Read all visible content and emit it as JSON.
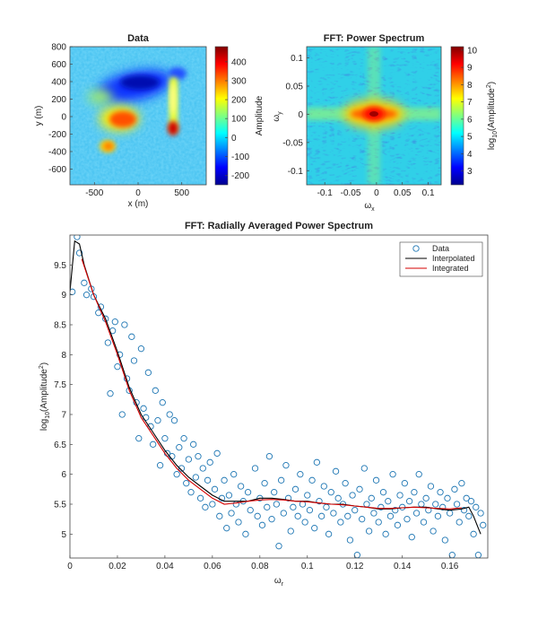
{
  "chart_data": [
    {
      "type": "heatmap",
      "title": "Data",
      "xlabel": "x (m)",
      "ylabel": "y (m)",
      "xlim": [
        -780,
        780
      ],
      "ylim": [
        -780,
        800
      ],
      "xticks": [
        -500,
        0,
        500
      ],
      "yticks": [
        -600,
        -400,
        -200,
        0,
        200,
        400,
        600,
        800
      ],
      "colorbar": {
        "label": "Amplitude",
        "range": [
          -250,
          480
        ],
        "ticks": [
          -200,
          -100,
          0,
          100,
          200,
          300,
          400
        ]
      },
      "features": [
        {
          "x": 0,
          "y": -80,
          "amplitude": 300
        },
        {
          "x": -300,
          "y": -380,
          "amplitude": 220
        },
        {
          "x": 430,
          "y": -180,
          "amplitude": 450
        },
        {
          "x": 0,
          "y": 300,
          "amplitude": -180
        },
        {
          "x": 440,
          "y": 480,
          "amplitude": -120
        }
      ]
    },
    {
      "type": "heatmap",
      "title": "FFT: Power Spectrum",
      "xlabel": "ω",
      "xlabel_sub": "x",
      "ylabel": "ω",
      "ylabel_sub": "y",
      "xlim": [
        -0.135,
        0.125
      ],
      "ylim": [
        -0.125,
        0.12
      ],
      "xticks": [
        -0.1,
        -0.05,
        0,
        0.05,
        0.1
      ],
      "yticks": [
        -0.1,
        -0.05,
        0,
        0.05,
        0.1
      ],
      "colorbar": {
        "label": "log10(Amplitude²)",
        "range": [
          2.2,
          10.2
        ],
        "ticks": [
          3,
          4,
          5,
          6,
          7,
          8,
          9,
          10
        ]
      }
    },
    {
      "type": "scatter",
      "title": "FFT: Radially Averaged Power Spectrum",
      "xlabel": "ω",
      "xlabel_sub": "r",
      "ylabel": "log10(Amplitude²)",
      "xlim": [
        0,
        0.176
      ],
      "ylim": [
        4.6,
        10.0
      ],
      "xticks": [
        0,
        0.02,
        0.04,
        0.06,
        0.08,
        0.1,
        0.12,
        0.14,
        0.16
      ],
      "yticks": [
        5,
        5.5,
        6,
        6.5,
        7,
        7.5,
        8,
        8.5,
        9,
        9.5
      ],
      "legend": {
        "position": "top-right",
        "entries": [
          "Data",
          "Interpolated",
          "Integrated"
        ]
      },
      "series": [
        {
          "name": "Data",
          "marker": "circle",
          "color": "#1f77b4",
          "points": [
            [
              0.001,
              9.05
            ],
            [
              0.003,
              9.97
            ],
            [
              0.004,
              9.7
            ],
            [
              0.006,
              9.2
            ],
            [
              0.007,
              9.0
            ],
            [
              0.009,
              9.1
            ],
            [
              0.01,
              8.97
            ],
            [
              0.012,
              8.7
            ],
            [
              0.013,
              8.8
            ],
            [
              0.015,
              8.6
            ],
            [
              0.016,
              8.2
            ],
            [
              0.017,
              7.35
            ],
            [
              0.018,
              8.4
            ],
            [
              0.019,
              8.55
            ],
            [
              0.02,
              7.8
            ],
            [
              0.021,
              8.0
            ],
            [
              0.022,
              7.0
            ],
            [
              0.023,
              8.5
            ],
            [
              0.024,
              7.6
            ],
            [
              0.025,
              7.4
            ],
            [
              0.026,
              8.3
            ],
            [
              0.027,
              7.9
            ],
            [
              0.028,
              7.2
            ],
            [
              0.029,
              6.6
            ],
            [
              0.03,
              8.1
            ],
            [
              0.031,
              7.1
            ],
            [
              0.032,
              6.95
            ],
            [
              0.033,
              7.7
            ],
            [
              0.034,
              6.8
            ],
            [
              0.035,
              6.5
            ],
            [
              0.036,
              7.4
            ],
            [
              0.037,
              6.9
            ],
            [
              0.038,
              6.15
            ],
            [
              0.039,
              7.2
            ],
            [
              0.04,
              6.6
            ],
            [
              0.041,
              6.35
            ],
            [
              0.042,
              7.0
            ],
            [
              0.043,
              6.3
            ],
            [
              0.044,
              6.9
            ],
            [
              0.045,
              6.0
            ],
            [
              0.046,
              6.45
            ],
            [
              0.047,
              6.1
            ],
            [
              0.048,
              6.6
            ],
            [
              0.049,
              5.85
            ],
            [
              0.05,
              6.25
            ],
            [
              0.051,
              5.7
            ],
            [
              0.052,
              6.5
            ],
            [
              0.053,
              5.95
            ],
            [
              0.054,
              6.3
            ],
            [
              0.055,
              5.6
            ],
            [
              0.056,
              6.1
            ],
            [
              0.057,
              5.45
            ],
            [
              0.058,
              5.9
            ],
            [
              0.059,
              6.2
            ],
            [
              0.06,
              5.5
            ],
            [
              0.061,
              5.75
            ],
            [
              0.062,
              6.35
            ],
            [
              0.063,
              5.3
            ],
            [
              0.064,
              5.6
            ],
            [
              0.065,
              5.9
            ],
            [
              0.066,
              5.1
            ],
            [
              0.067,
              5.65
            ],
            [
              0.068,
              5.35
            ],
            [
              0.069,
              6.0
            ],
            [
              0.07,
              5.5
            ],
            [
              0.071,
              5.2
            ],
            [
              0.072,
              5.8
            ],
            [
              0.073,
              5.55
            ],
            [
              0.074,
              5.0
            ],
            [
              0.075,
              5.7
            ],
            [
              0.076,
              5.4
            ],
            [
              0.078,
              6.1
            ],
            [
              0.079,
              5.3
            ],
            [
              0.08,
              5.6
            ],
            [
              0.081,
              5.15
            ],
            [
              0.082,
              5.85
            ],
            [
              0.083,
              5.45
            ],
            [
              0.084,
              6.3
            ],
            [
              0.085,
              5.25
            ],
            [
              0.086,
              5.7
            ],
            [
              0.087,
              5.5
            ],
            [
              0.088,
              4.8
            ],
            [
              0.089,
              5.9
            ],
            [
              0.09,
              5.35
            ],
            [
              0.091,
              6.15
            ],
            [
              0.092,
              5.6
            ],
            [
              0.093,
              5.05
            ],
            [
              0.094,
              5.45
            ],
            [
              0.095,
              5.75
            ],
            [
              0.096,
              5.3
            ],
            [
              0.097,
              6.0
            ],
            [
              0.098,
              5.5
            ],
            [
              0.099,
              5.2
            ],
            [
              0.1,
              5.65
            ],
            [
              0.101,
              5.4
            ],
            [
              0.102,
              5.9
            ],
            [
              0.103,
              5.1
            ],
            [
              0.104,
              6.2
            ],
            [
              0.105,
              5.55
            ],
            [
              0.106,
              5.3
            ],
            [
              0.107,
              5.8
            ],
            [
              0.108,
              5.45
            ],
            [
              0.109,
              5.0
            ],
            [
              0.11,
              5.7
            ],
            [
              0.111,
              5.35
            ],
            [
              0.112,
              6.05
            ],
            [
              0.113,
              5.6
            ],
            [
              0.114,
              5.2
            ],
            [
              0.115,
              5.5
            ],
            [
              0.116,
              5.85
            ],
            [
              0.117,
              5.3
            ],
            [
              0.118,
              4.9
            ],
            [
              0.119,
              5.65
            ],
            [
              0.12,
              5.4
            ],
            [
              0.121,
              4.65
            ],
            [
              0.122,
              5.75
            ],
            [
              0.123,
              5.25
            ],
            [
              0.124,
              6.1
            ],
            [
              0.125,
              5.5
            ],
            [
              0.126,
              5.05
            ],
            [
              0.127,
              5.6
            ],
            [
              0.128,
              5.35
            ],
            [
              0.129,
              5.9
            ],
            [
              0.13,
              5.2
            ],
            [
              0.131,
              5.45
            ],
            [
              0.132,
              5.7
            ],
            [
              0.133,
              5.0
            ],
            [
              0.134,
              5.55
            ],
            [
              0.135,
              5.3
            ],
            [
              0.136,
              6.0
            ],
            [
              0.137,
              5.4
            ],
            [
              0.138,
              5.15
            ],
            [
              0.139,
              5.65
            ],
            [
              0.14,
              5.45
            ],
            [
              0.141,
              5.85
            ],
            [
              0.142,
              5.25
            ],
            [
              0.143,
              5.55
            ],
            [
              0.144,
              4.95
            ],
            [
              0.145,
              5.7
            ],
            [
              0.146,
              5.35
            ],
            [
              0.147,
              6.0
            ],
            [
              0.148,
              5.5
            ],
            [
              0.149,
              5.2
            ],
            [
              0.15,
              5.6
            ],
            [
              0.151,
              5.4
            ],
            [
              0.152,
              5.8
            ],
            [
              0.153,
              5.05
            ],
            [
              0.154,
              5.5
            ],
            [
              0.155,
              5.3
            ],
            [
              0.156,
              5.7
            ],
            [
              0.157,
              5.45
            ],
            [
              0.158,
              4.9
            ],
            [
              0.159,
              5.6
            ],
            [
              0.16,
              5.35
            ],
            [
              0.161,
              4.65
            ],
            [
              0.162,
              5.75
            ],
            [
              0.163,
              5.5
            ],
            [
              0.164,
              5.2
            ],
            [
              0.165,
              5.85
            ],
            [
              0.166,
              5.4
            ],
            [
              0.167,
              5.6
            ],
            [
              0.168,
              5.3
            ],
            [
              0.169,
              5.55
            ],
            [
              0.17,
              5.0
            ],
            [
              0.171,
              5.45
            ],
            [
              0.172,
              4.65
            ],
            [
              0.173,
              5.35
            ],
            [
              0.174,
              5.15
            ]
          ]
        },
        {
          "name": "Interpolated",
          "color": "#000000",
          "points": [
            [
              0.0,
              9.05
            ],
            [
              0.002,
              9.9
            ],
            [
              0.004,
              9.85
            ],
            [
              0.006,
              9.5
            ],
            [
              0.01,
              9.0
            ],
            [
              0.015,
              8.6
            ],
            [
              0.02,
              8.05
            ],
            [
              0.025,
              7.45
            ],
            [
              0.03,
              7.0
            ],
            [
              0.035,
              6.7
            ],
            [
              0.04,
              6.4
            ],
            [
              0.045,
              6.15
            ],
            [
              0.05,
              5.95
            ],
            [
              0.055,
              5.8
            ],
            [
              0.06,
              5.65
            ],
            [
              0.065,
              5.55
            ],
            [
              0.07,
              5.55
            ],
            [
              0.075,
              5.55
            ],
            [
              0.08,
              5.6
            ],
            [
              0.085,
              5.6
            ],
            [
              0.09,
              5.58
            ],
            [
              0.095,
              5.55
            ],
            [
              0.1,
              5.55
            ],
            [
              0.105,
              5.52
            ],
            [
              0.11,
              5.5
            ],
            [
              0.115,
              5.5
            ],
            [
              0.12,
              5.47
            ],
            [
              0.125,
              5.45
            ],
            [
              0.13,
              5.42
            ],
            [
              0.135,
              5.42
            ],
            [
              0.14,
              5.44
            ],
            [
              0.145,
              5.45
            ],
            [
              0.15,
              5.45
            ],
            [
              0.155,
              5.42
            ],
            [
              0.16,
              5.4
            ],
            [
              0.165,
              5.42
            ],
            [
              0.168,
              5.45
            ],
            [
              0.17,
              5.3
            ],
            [
              0.172,
              5.1
            ],
            [
              0.173,
              5.0
            ]
          ]
        },
        {
          "name": "Integrated",
          "color": "#d40000",
          "points": [
            [
              0.005,
              9.6
            ],
            [
              0.01,
              9.0
            ],
            [
              0.015,
              8.55
            ],
            [
              0.02,
              8.0
            ],
            [
              0.025,
              7.4
            ],
            [
              0.03,
              6.95
            ],
            [
              0.035,
              6.65
            ],
            [
              0.04,
              6.35
            ],
            [
              0.045,
              6.1
            ],
            [
              0.05,
              5.9
            ],
            [
              0.055,
              5.75
            ],
            [
              0.06,
              5.6
            ],
            [
              0.065,
              5.5
            ],
            [
              0.07,
              5.52
            ],
            [
              0.075,
              5.55
            ],
            [
              0.08,
              5.57
            ],
            [
              0.085,
              5.58
            ],
            [
              0.09,
              5.57
            ],
            [
              0.095,
              5.55
            ],
            [
              0.1,
              5.54
            ],
            [
              0.105,
              5.52
            ],
            [
              0.11,
              5.5
            ],
            [
              0.115,
              5.49
            ],
            [
              0.12,
              5.47
            ],
            [
              0.125,
              5.45
            ],
            [
              0.13,
              5.43
            ],
            [
              0.135,
              5.43
            ],
            [
              0.14,
              5.44
            ],
            [
              0.145,
              5.45
            ],
            [
              0.15,
              5.44
            ],
            [
              0.155,
              5.43
            ],
            [
              0.16,
              5.42
            ],
            [
              0.165,
              5.44
            ]
          ]
        }
      ]
    }
  ]
}
